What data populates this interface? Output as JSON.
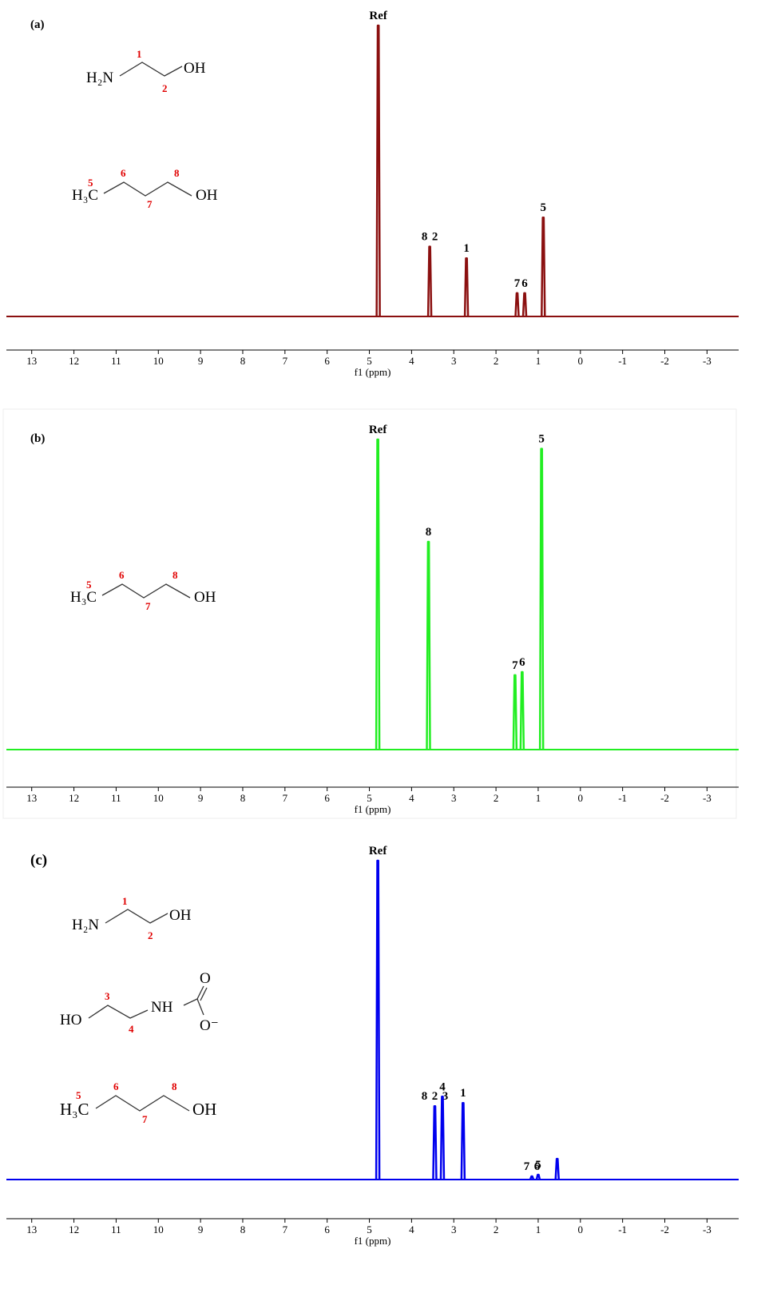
{
  "chart_data": [
    {
      "type": "spectrum",
      "panel_label": "(a)",
      "x_label": "f1 (ppm)",
      "color": "#8b1010",
      "xlim": [
        13.6,
        -3.75
      ],
      "xticks": [
        13,
        12,
        11,
        10,
        9,
        8,
        7,
        6,
        5,
        4,
        3,
        2,
        1,
        0,
        -1,
        -2,
        -3
      ],
      "peaks": [
        {
          "x": 4.79,
          "height": 100,
          "labels": [
            "Ref"
          ]
        },
        {
          "x": 3.57,
          "height": 24,
          "labels": [
            "8",
            "2"
          ]
        },
        {
          "x": 2.7,
          "height": 20,
          "labels": [
            "1"
          ]
        },
        {
          "x": 1.5,
          "height": 8,
          "labels": [
            "7"
          ]
        },
        {
          "x": 1.32,
          "height": 8,
          "labels": [
            "6"
          ]
        },
        {
          "x": 0.88,
          "height": 34,
          "labels": [
            "5"
          ]
        }
      ],
      "structures": [
        {
          "texts": [
            "H₂N",
            "OH"
          ],
          "numbers": [
            "1",
            "2"
          ]
        },
        {
          "texts": [
            "H₃C",
            "OH"
          ],
          "numbers": [
            "5",
            "6",
            "7",
            "8"
          ]
        }
      ]
    },
    {
      "type": "spectrum",
      "panel_label": "(b)",
      "x_label": "f1 (ppm)",
      "color": "#22ee22",
      "xlim": [
        13.6,
        -3.75
      ],
      "xticks": [
        13,
        12,
        11,
        10,
        9,
        8,
        7,
        6,
        5,
        4,
        3,
        2,
        1,
        0,
        -1,
        -2,
        -3
      ],
      "peaks": [
        {
          "x": 4.8,
          "height": 100,
          "labels": [
            "Ref"
          ]
        },
        {
          "x": 3.6,
          "height": 67,
          "labels": [
            "8"
          ]
        },
        {
          "x": 1.55,
          "height": 24,
          "labels": [
            "7"
          ]
        },
        {
          "x": 1.38,
          "height": 25,
          "labels": [
            "6"
          ]
        },
        {
          "x": 0.92,
          "height": 97,
          "labels": [
            "5"
          ]
        }
      ],
      "structures": [
        {
          "texts": [
            "H₃C",
            "OH"
          ],
          "numbers": [
            "5",
            "6",
            "7",
            "8"
          ]
        }
      ]
    },
    {
      "type": "spectrum",
      "panel_label": "(c)",
      "x_label": "f1 (ppm)",
      "color": "#0000ee",
      "xlim": [
        13.6,
        -3.75
      ],
      "xticks": [
        13,
        12,
        11,
        10,
        9,
        8,
        7,
        6,
        5,
        4,
        3,
        2,
        1,
        0,
        -1,
        -2,
        -3
      ],
      "peaks": [
        {
          "x": 4.8,
          "height": 100,
          "labels": [
            "Ref"
          ]
        },
        {
          "x": 3.45,
          "height": 23,
          "labels": [
            "8",
            "2",
            "3"
          ]
        },
        {
          "x": 3.27,
          "height": 26,
          "labels": [
            "4"
          ]
        },
        {
          "x": 2.78,
          "height": 24,
          "labels": [
            "1"
          ]
        },
        {
          "x": 1.15,
          "height": 1,
          "labels": [
            "7",
            "6"
          ]
        },
        {
          "x": 1.0,
          "height": 1.5,
          "labels": [
            "5"
          ]
        },
        {
          "x": 0.55,
          "height": 6.5,
          "labels": []
        }
      ],
      "structures": [
        {
          "texts": [
            "H₂N",
            "OH"
          ],
          "numbers": [
            "1",
            "2"
          ]
        },
        {
          "texts": [
            "HO",
            "NH",
            "O",
            "O⁻"
          ],
          "numbers": [
            "3",
            "4"
          ]
        },
        {
          "texts": [
            "H₃C",
            "OH"
          ],
          "numbers": [
            "5",
            "6",
            "7",
            "8"
          ]
        }
      ]
    }
  ]
}
